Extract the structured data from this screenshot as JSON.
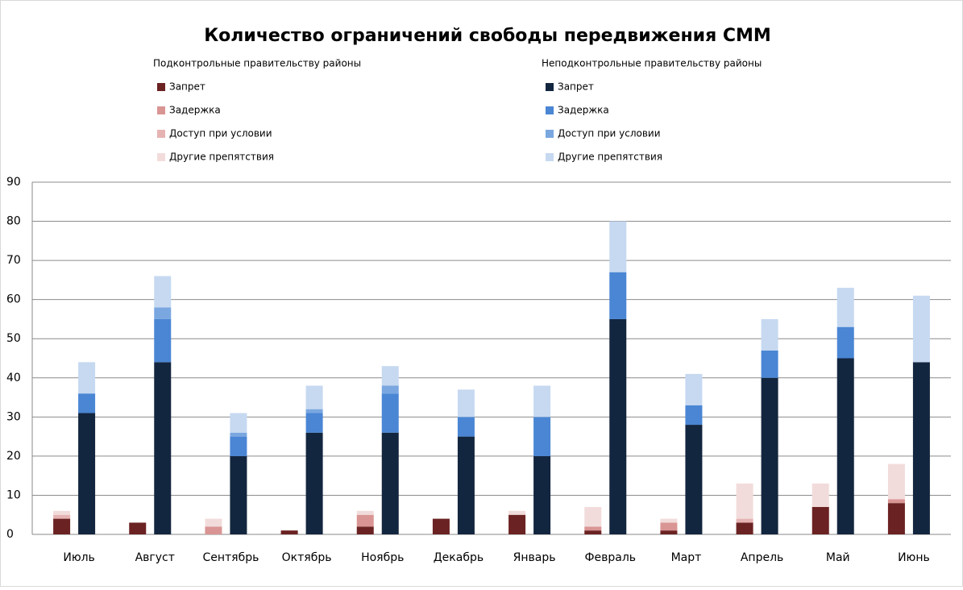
{
  "chart_data": {
    "type": "grouped_stacked_bar",
    "title": "Количество ограничений свободы передвижения СММ",
    "categories": [
      "Июль",
      "Август",
      "Сентябрь",
      "Октябрь",
      "Ноябрь",
      "Декабрь",
      "Январь",
      "Февраль",
      "Март",
      "Апрель",
      "Май",
      "Июнь"
    ],
    "groups": [
      {
        "name": "Подконтрольные правительству районы",
        "series": [
          {
            "name": "Запрет",
            "color": "#6b2222",
            "values": [
              4,
              3,
              0,
              1,
              2,
              4,
              5,
              1,
              1,
              3,
              7,
              8
            ]
          },
          {
            "name": "Задержка",
            "color": "#d99594",
            "values": [
              0,
              0,
              2,
              0,
              3,
              0,
              0,
              1,
              2,
              0,
              0,
              1
            ]
          },
          {
            "name": "Доступ при условии",
            "color": "#e6b3b3",
            "values": [
              1,
              0,
              0,
              0,
              0,
              0,
              0,
              0,
              0,
              1,
              0,
              0
            ]
          },
          {
            "name": "Другие препятствия",
            "color": "#f2dcdb",
            "values": [
              1,
              0,
              2,
              0,
              1,
              0,
              1,
              5,
              1,
              9,
              6,
              9
            ]
          }
        ]
      },
      {
        "name": "Неподконтрольные правительству районы",
        "series": [
          {
            "name": "Запрет",
            "color": "#13263f",
            "values": [
              31,
              44,
              20,
              26,
              26,
              25,
              20,
              55,
              28,
              40,
              45,
              44
            ]
          },
          {
            "name": "Задержка",
            "color": "#4a86d4",
            "values": [
              5,
              11,
              5,
              5,
              10,
              5,
              10,
              12,
              5,
              7,
              8,
              0
            ]
          },
          {
            "name": "Доступ при условии",
            "color": "#7aa7e0",
            "values": [
              0,
              3,
              1,
              1,
              2,
              0,
              0,
              0,
              0,
              0,
              0,
              0
            ]
          },
          {
            "name": "Другие препятствия",
            "color": "#c6d9f1",
            "values": [
              8,
              8,
              5,
              6,
              5,
              7,
              8,
              13,
              8,
              8,
              10,
              17
            ]
          }
        ]
      }
    ],
    "ylim": [
      0,
      90
    ],
    "yticks": [
      0,
      10,
      20,
      30,
      40,
      50,
      60,
      70,
      80,
      90
    ],
    "grid": true
  }
}
